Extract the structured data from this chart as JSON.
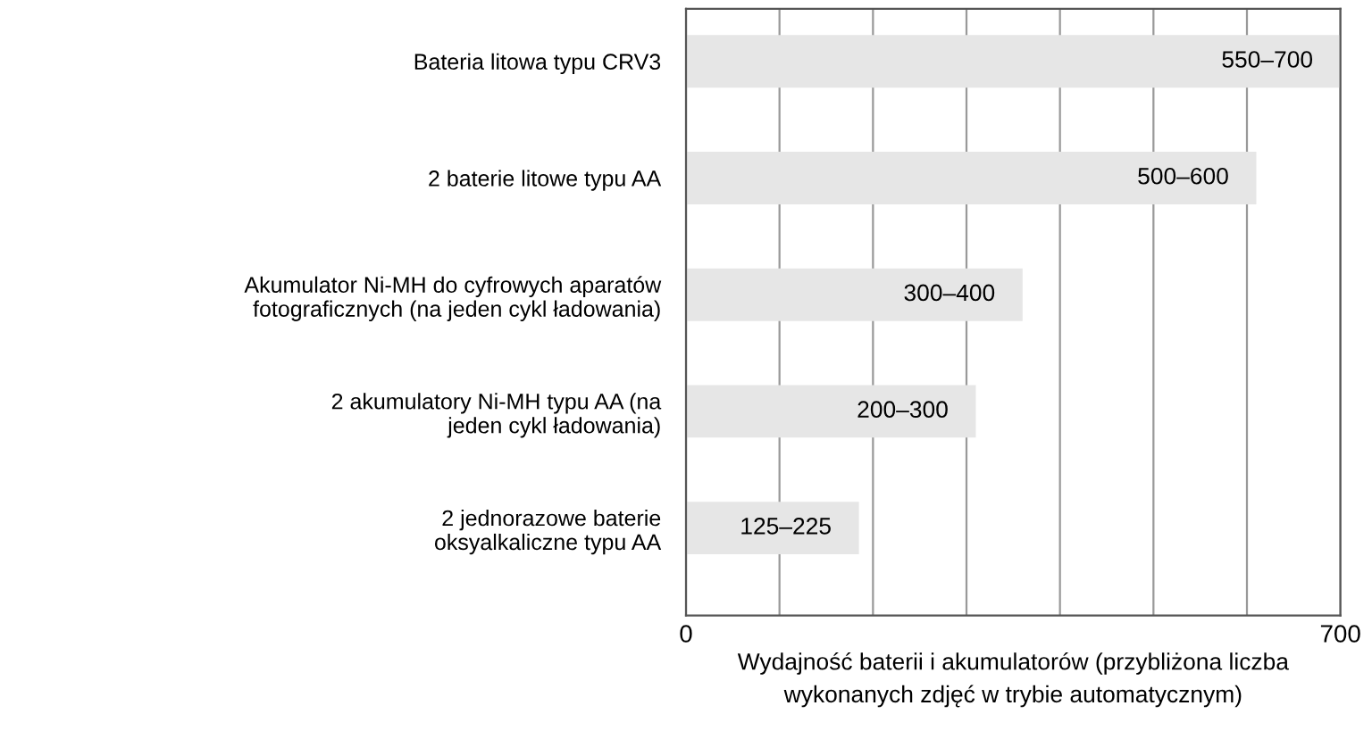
{
  "chart_data": {
    "type": "bar",
    "orientation": "horizontal",
    "categories": [
      "Bateria litowa typu CRV3",
      "2 baterie litowe typu AA",
      "Akumulator Ni-MH do cyfrowych aparatów\nfotograficznych (na jeden cykl ładowania)",
      "2 akumulatory Ni-MH typu AA (na\njeden cykl ładowania)",
      "2 jednorazowe baterie\noksyalkaliczne typu AA"
    ],
    "values": [
      700,
      610,
      360,
      310,
      185
    ],
    "value_labels": [
      "550–700",
      "500–600",
      "300–400",
      "200–300",
      "125–225"
    ],
    "color": "#e6e6e6",
    "xlim": [
      0,
      700
    ],
    "xticks": [
      0,
      {
        "value": 100,
        "label": null
      },
      {
        "value": 200,
        "label": null
      },
      {
        "value": 300,
        "label": null
      },
      {
        "value": 400,
        "label": null
      },
      {
        "value": 500,
        "label": null
      },
      {
        "value": 600,
        "label": null
      },
      700
    ],
    "xlabel": "Wydajność baterii i akumulatorów (przybliżona liczba\nwykonanych zdjęć w trybie automatycznym)",
    "grid": "x",
    "legend": false
  }
}
